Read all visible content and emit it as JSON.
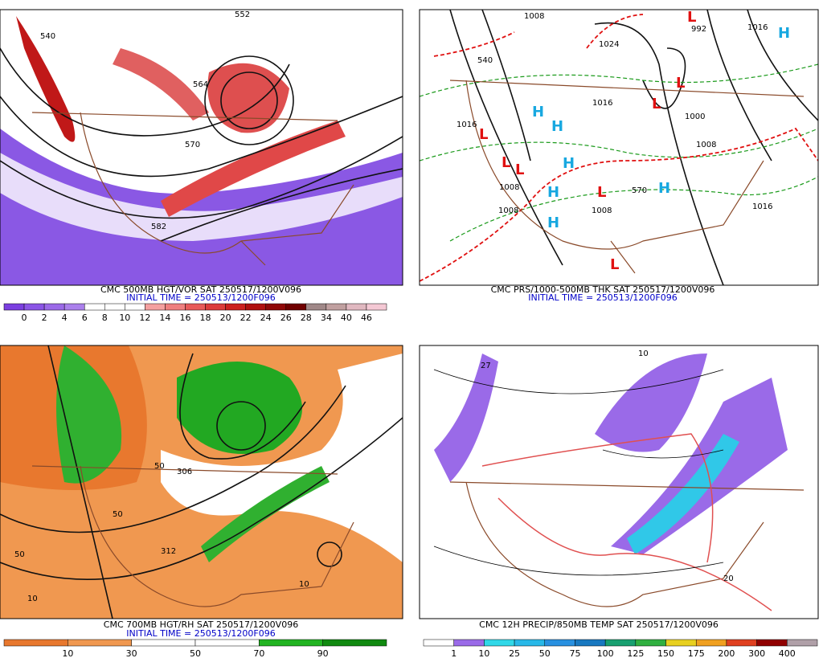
{
  "panels": [
    {
      "caption": "CMC 500MB HGT/VOR SAT 250517/1200V096",
      "initial_time": "INITIAL TIME = 250513/1200F096",
      "scale_labels": [
        "0",
        "2",
        "4",
        "6",
        "8",
        "10",
        "12",
        "14",
        "16",
        "18",
        "20",
        "22",
        "24",
        "26",
        "28",
        "34",
        "40",
        "46"
      ],
      "scale_colors": [
        "#7b3fe0",
        "#8b55e6",
        "#9b6ae8",
        "#ab80ec",
        "#ffffff",
        "#ffffff",
        "#ffffff",
        "#f4a0a0",
        "#ef7f7f",
        "#e85a5a",
        "#dc3b3b",
        "#cc2020",
        "#b01010",
        "#900808",
        "#700000",
        "#a08888",
        "#c0a0a0",
        "#e0b8c0",
        "#f4c8d4"
      ],
      "map_labels": [
        "540",
        "552",
        "564",
        "570",
        "582"
      ]
    },
    {
      "caption": "CMC PRS/1000-500MB THK SAT 250517/1200V096",
      "initial_time": "INITIAL TIME = 250513/1200F096",
      "map_labels": [
        "1008",
        "1024",
        "992",
        "1016",
        "540",
        "1016",
        "1016",
        "1000",
        "1008",
        "1008",
        "570",
        "1008",
        "1008",
        "1016"
      ],
      "highs": [
        "H",
        "H",
        "H",
        "H",
        "H",
        "H",
        "H"
      ],
      "lows": [
        "L",
        "L",
        "L",
        "L",
        "L",
        "L",
        "L",
        "L"
      ]
    },
    {
      "caption": "CMC 700MB HGT/RH SAT 250517/1200V096",
      "initial_time": "INITIAL TIME = 250513/1200F096",
      "scale_labels": [
        "10",
        "30",
        "50",
        "70",
        "90"
      ],
      "scale_colors": [
        "#e8782e",
        "#f09850",
        "#ffffff",
        "#ffffff",
        "#22b422",
        "#108a10"
      ],
      "map_labels": [
        "50",
        "306",
        "50",
        "312",
        "10",
        "10",
        "50"
      ]
    },
    {
      "caption": "CMC 12H PRECIP/850MB TEMP SAT 250517/1200V096",
      "scale_labels": [
        "1",
        "10",
        "25",
        "50",
        "75",
        "100",
        "125",
        "150",
        "175",
        "200",
        "300",
        "400"
      ],
      "scale_colors": [
        "#ffffff",
        "#9a6ae8",
        "#30d8e8",
        "#28b8e8",
        "#2890e0",
        "#1878c0",
        "#18a070",
        "#30b040",
        "#e8d020",
        "#f0a020",
        "#e04020",
        "#900000",
        "#b0a0a8"
      ],
      "map_labels": [
        "10",
        "27",
        "20"
      ]
    }
  ]
}
